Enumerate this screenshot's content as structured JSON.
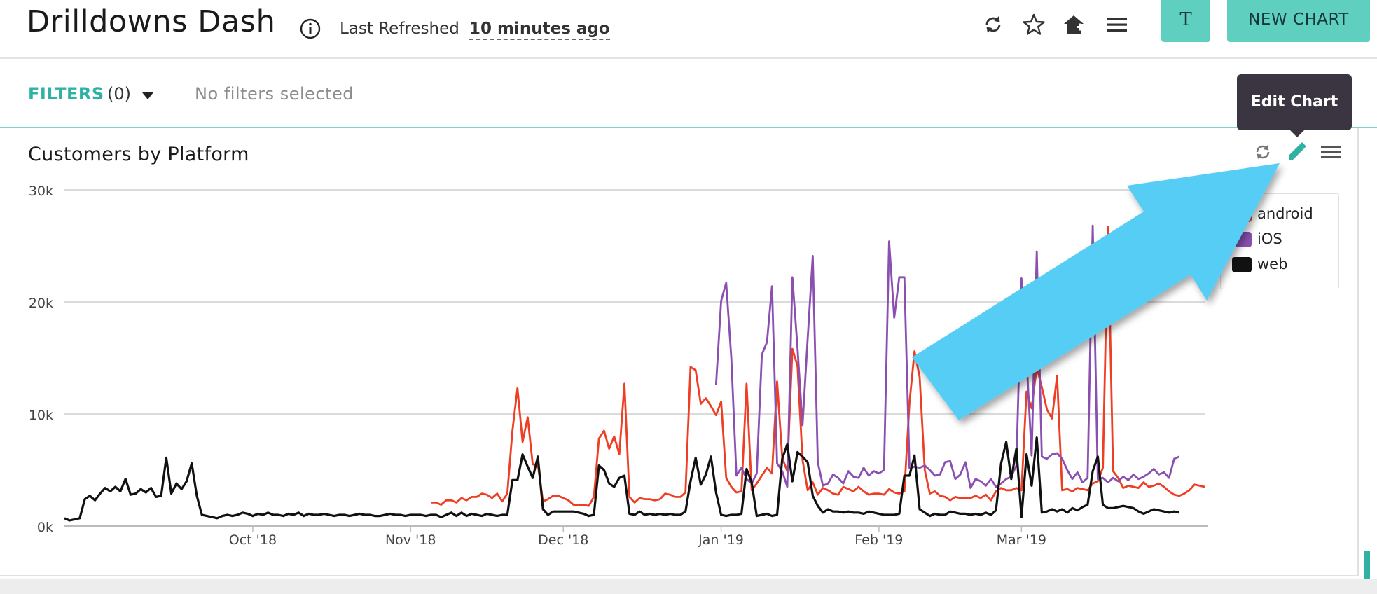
{
  "header": {
    "title": "Drilldowns Dash",
    "info_icon": "info-circle-icon",
    "refresh_label": "Last Refreshed",
    "refresh_value": "10 minutes ago",
    "icons": [
      "refresh-icon",
      "star-icon",
      "home-add-icon",
      "menu-icon"
    ],
    "avatar_label": "T",
    "new_chart_label": "NEW CHART"
  },
  "filters": {
    "label": "FILTERS",
    "count": "(0)",
    "empty_text": "No filters selected"
  },
  "tooltip": {
    "text": "Edit Chart"
  },
  "panel": {
    "title": "Customers by Platform",
    "icons": [
      "refresh-icon",
      "pencil-icon",
      "menu-icon"
    ]
  },
  "colors": {
    "accent": "#5fcfc0",
    "filter_label": "#2fb1a3",
    "tooltip_bg": "#3a3541",
    "arrow": "#55cdf5"
  },
  "chart_data": {
    "type": "line",
    "title": "Customers by Platform",
    "xlabel": "",
    "ylabel": "",
    "x_start": "2018-08-25",
    "x_step": "1 day",
    "x_ticks": [
      "Oct '18",
      "Nov '18",
      "Dec '18",
      "Jan '19",
      "Feb '19",
      "Mar '19"
    ],
    "x_tick_dates": [
      "2018-10-01",
      "2018-11-01",
      "2018-12-01",
      "2019-01-01",
      "2019-02-01",
      "2019-03-01"
    ],
    "y_ticks": [
      "0k",
      "10k",
      "20k",
      "30k"
    ],
    "ylim": [
      0,
      30000
    ],
    "grid": true,
    "legend_position": "top-right",
    "series": [
      {
        "name": "android",
        "color": "#ee3e23",
        "values": [
          null,
          null,
          null,
          null,
          null,
          null,
          null,
          null,
          null,
          null,
          null,
          null,
          null,
          null,
          null,
          null,
          null,
          null,
          null,
          null,
          null,
          null,
          null,
          null,
          null,
          null,
          null,
          null,
          null,
          null,
          null,
          null,
          null,
          null,
          null,
          null,
          null,
          null,
          null,
          null,
          null,
          null,
          null,
          null,
          null,
          null,
          null,
          null,
          null,
          null,
          null,
          null,
          null,
          null,
          null,
          null,
          null,
          null,
          null,
          null,
          null,
          null,
          null,
          null,
          null,
          null,
          null,
          null,
          null,
          null,
          null,
          null,
          2100,
          2100,
          1900,
          2300,
          2300,
          2100,
          2500,
          2300,
          2600,
          2600,
          2900,
          2800,
          2500,
          2900,
          2200,
          2900,
          8500,
          12300,
          7500,
          9700,
          5500,
          5500,
          2200,
          2400,
          2700,
          2700,
          2500,
          2300,
          1900,
          1900,
          1900,
          1800,
          2600,
          7800,
          8500,
          6900,
          8000,
          6400,
          12700,
          2600,
          2100,
          2500,
          2400,
          2400,
          2300,
          2400,
          2900,
          2800,
          2600,
          2600,
          3000,
          14200,
          13900,
          10900,
          11400,
          10700,
          9900,
          11100,
          4300,
          3500,
          3000,
          3100,
          12700,
          3200,
          3800,
          4500,
          5200,
          4700,
          12900,
          6100,
          4900,
          15800,
          14300,
          5900,
          3200,
          3900,
          2800,
          3400,
          3200,
          2900,
          2800,
          3500,
          3300,
          3100,
          3500,
          3100,
          2800,
          2900,
          2900,
          2800,
          3300,
          3000,
          2900,
          3100,
          11000,
          15600,
          13300,
          5000,
          2900,
          3100,
          2700,
          2600,
          2300,
          2600,
          2500,
          2500,
          2500,
          2700,
          2500,
          2800,
          2300,
          3100,
          3400,
          3200,
          3200,
          3400,
          3200,
          12000,
          10500,
          14200,
          12400,
          10400,
          9600,
          13400,
          3200,
          3300,
          3100,
          3400,
          3300,
          3200,
          3800,
          4000,
          5200,
          26700,
          4900,
          4300,
          3400,
          3600,
          3500,
          3400,
          3900,
          3500,
          3600,
          3800,
          3500,
          3100,
          2800,
          2700,
          2900,
          3200,
          3700,
          3600,
          3500
        ]
      },
      {
        "name": "iOS",
        "color": "#8a4fb0",
        "values": [
          null,
          null,
          null,
          null,
          null,
          null,
          null,
          null,
          null,
          null,
          null,
          null,
          null,
          null,
          null,
          null,
          null,
          null,
          null,
          null,
          null,
          null,
          null,
          null,
          null,
          null,
          null,
          null,
          null,
          null,
          null,
          null,
          null,
          null,
          null,
          null,
          null,
          null,
          null,
          null,
          null,
          null,
          null,
          null,
          null,
          null,
          null,
          null,
          null,
          null,
          null,
          null,
          null,
          null,
          null,
          null,
          null,
          null,
          null,
          null,
          null,
          null,
          null,
          null,
          null,
          null,
          null,
          null,
          null,
          null,
          null,
          null,
          null,
          null,
          null,
          null,
          null,
          null,
          null,
          null,
          null,
          null,
          null,
          null,
          null,
          null,
          null,
          null,
          null,
          null,
          null,
          null,
          null,
          null,
          null,
          null,
          null,
          null,
          null,
          null,
          null,
          null,
          null,
          null,
          null,
          null,
          null,
          null,
          null,
          null,
          null,
          null,
          null,
          null,
          null,
          null,
          null,
          null,
          null,
          null,
          null,
          null,
          null,
          null,
          null,
          null,
          null,
          null,
          12600,
          20100,
          21700,
          15000,
          4500,
          5200,
          4200,
          3800,
          4700,
          15300,
          16400,
          21400,
          5600,
          4900,
          3500,
          22200,
          15900,
          9000,
          16700,
          24100,
          5700,
          3600,
          3800,
          4600,
          4300,
          3800,
          4900,
          4400,
          4300,
          5200,
          4500,
          4900,
          4700,
          5000,
          25400,
          18600,
          22200,
          22200,
          5200,
          5300,
          5200,
          5400,
          5000,
          4500,
          4600,
          5700,
          5800,
          4200,
          4600,
          5700,
          3400,
          4200,
          4000,
          3600,
          4200,
          3500,
          3800,
          4200,
          4400,
          5400,
          22100,
          15000,
          6300,
          24500,
          6200,
          6000,
          6400,
          6500,
          6000,
          5000,
          4200,
          4800,
          3900,
          4300,
          26800,
          4200,
          4300,
          3900,
          4300,
          4000,
          4400,
          4100,
          4600,
          4200,
          4400,
          4700,
          5100,
          4600,
          4800,
          4300,
          6000,
          6200
        ]
      },
      {
        "name": "web",
        "color": "#111111",
        "values": [
          700,
          500,
          600,
          700,
          2400,
          2700,
          2300,
          2900,
          3400,
          3100,
          3500,
          3100,
          4200,
          2800,
          2900,
          3300,
          3000,
          3400,
          2600,
          2700,
          6100,
          2900,
          3800,
          3300,
          4000,
          5600,
          2700,
          1000,
          900,
          800,
          700,
          900,
          1000,
          900,
          1000,
          1200,
          1100,
          900,
          1100,
          1000,
          1200,
          1000,
          1000,
          900,
          1100,
          1000,
          1200,
          900,
          1100,
          1000,
          1000,
          1100,
          1000,
          900,
          1000,
          1000,
          900,
          1000,
          1100,
          1000,
          1000,
          900,
          900,
          1000,
          1100,
          1000,
          1000,
          900,
          1000,
          1000,
          1000,
          900,
          1000,
          1000,
          800,
          1000,
          1200,
          900,
          1200,
          900,
          1100,
          1000,
          900,
          1100,
          1000,
          900,
          1000,
          1000,
          4100,
          4100,
          6400,
          5300,
          4300,
          6200,
          1500,
          1000,
          1300,
          1300,
          1300,
          1300,
          1300,
          1200,
          1100,
          900,
          1000,
          5400,
          5000,
          3800,
          3500,
          4300,
          4500,
          1100,
          1000,
          1300,
          1000,
          1100,
          1000,
          1100,
          1000,
          1100,
          1000,
          1000,
          1300,
          4000,
          6100,
          3700,
          4600,
          6200,
          3000,
          1000,
          900,
          1000,
          1000,
          1100,
          5100,
          3900,
          900,
          1000,
          1100,
          900,
          1000,
          6000,
          7300,
          4000,
          6600,
          6200,
          5700,
          2700,
          1800,
          1200,
          1500,
          1300,
          1300,
          1200,
          1300,
          1200,
          1200,
          1100,
          1300,
          1200,
          1100,
          1000,
          1000,
          1000,
          1100,
          4500,
          4500,
          6300,
          1500,
          1200,
          900,
          1100,
          1000,
          1000,
          1300,
          1200,
          1100,
          1100,
          1000,
          1100,
          1000,
          1200,
          1000,
          1400,
          5600,
          7500,
          4200,
          6900,
          800,
          6400,
          3600,
          7900,
          1200,
          1300,
          1500,
          1300,
          1500,
          1200,
          1600,
          1400,
          1700,
          1900,
          4900,
          6200,
          1900,
          1600,
          1600,
          1700,
          1800,
          1700,
          1600,
          1300,
          1100,
          1300,
          1500,
          1400,
          1300,
          1200,
          1300,
          1200
        ]
      }
    ]
  }
}
